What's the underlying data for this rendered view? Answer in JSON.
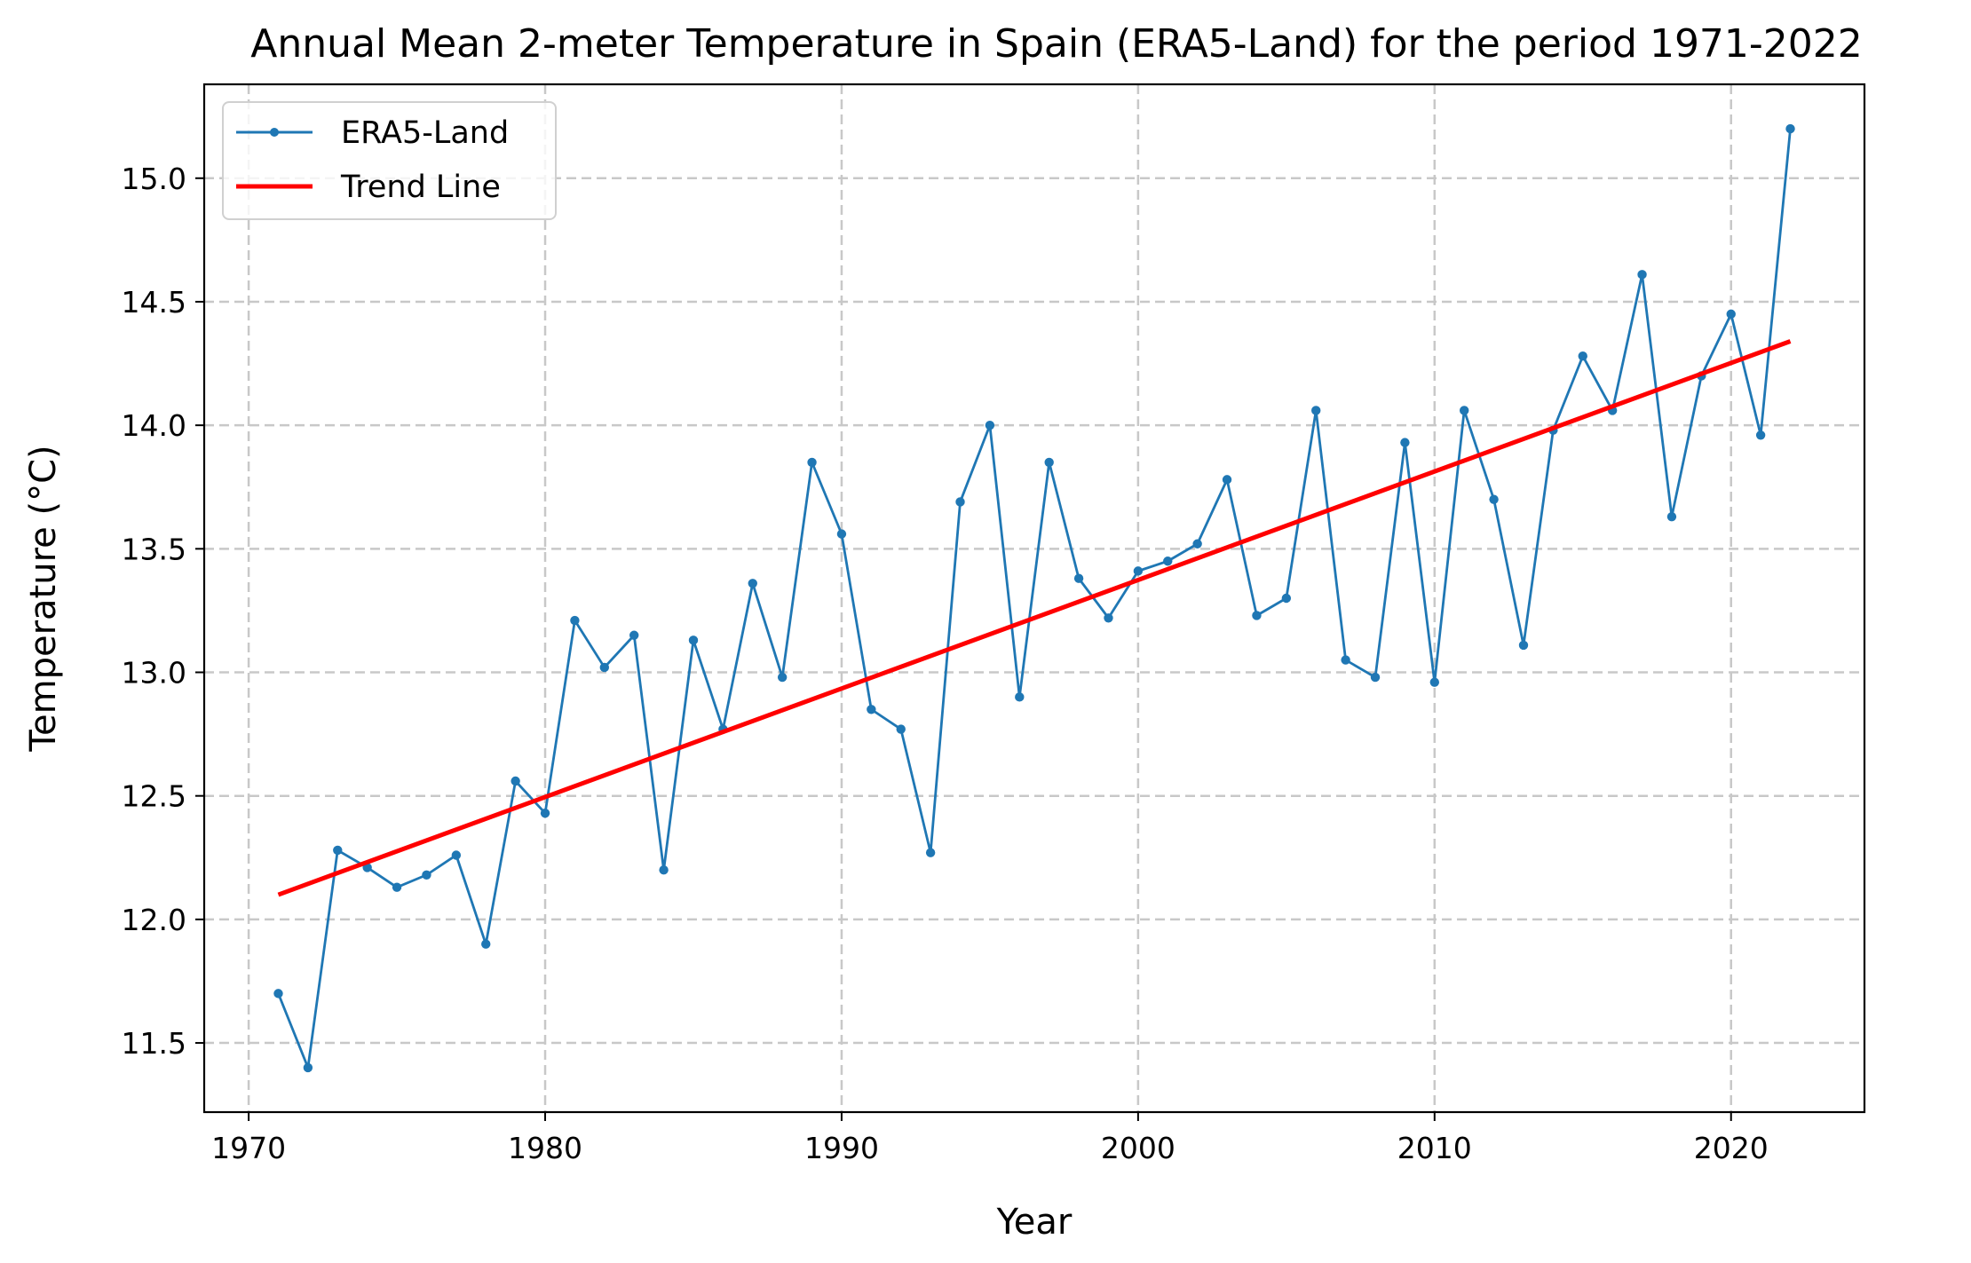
{
  "chart_data": {
    "type": "line",
    "title": "Annual Mean 2-meter Temperature in Spain (ERA5-Land) for the period 1971-2022",
    "xlabel": "Year",
    "ylabel": "Temperature (°C)",
    "xlim": [
      1968.5,
      2024.5
    ],
    "ylim": [
      11.22,
      15.38
    ],
    "xticks": [
      1970,
      1980,
      1990,
      2000,
      2010,
      2020
    ],
    "xtick_labels": [
      "1970",
      "1980",
      "1990",
      "2000",
      "2010",
      "2020"
    ],
    "yticks": [
      11.5,
      12.0,
      12.5,
      13.0,
      13.5,
      14.0,
      14.5,
      15.0
    ],
    "ytick_labels": [
      "11.5",
      "12.0",
      "12.5",
      "13.0",
      "13.5",
      "14.0",
      "14.5",
      "15.0"
    ],
    "grid": true,
    "legend_position": "top-left",
    "series": [
      {
        "name": "ERA5-Land",
        "kind": "line-with-markers",
        "color": "#1f77b4",
        "x": [
          1971,
          1972,
          1973,
          1974,
          1975,
          1976,
          1977,
          1978,
          1979,
          1980,
          1981,
          1982,
          1983,
          1984,
          1985,
          1986,
          1987,
          1988,
          1989,
          1990,
          1991,
          1992,
          1993,
          1994,
          1995,
          1996,
          1997,
          1998,
          1999,
          2000,
          2001,
          2002,
          2003,
          2004,
          2005,
          2006,
          2007,
          2008,
          2009,
          2010,
          2011,
          2012,
          2013,
          2014,
          2015,
          2016,
          2017,
          2018,
          2019,
          2020,
          2021,
          2022
        ],
        "y": [
          11.7,
          11.4,
          12.28,
          12.21,
          12.13,
          12.18,
          12.26,
          11.9,
          12.56,
          12.43,
          13.21,
          13.02,
          13.15,
          12.2,
          13.13,
          12.77,
          13.36,
          12.98,
          13.85,
          13.56,
          12.85,
          12.77,
          12.27,
          13.69,
          14.0,
          12.9,
          13.85,
          13.38,
          13.22,
          13.41,
          13.45,
          13.52,
          13.78,
          13.23,
          13.3,
          14.06,
          13.05,
          12.98,
          13.93,
          12.96,
          14.06,
          13.7,
          13.11,
          13.98,
          14.28,
          14.06,
          14.61,
          13.63,
          14.2,
          14.45,
          13.96,
          15.2
        ]
      },
      {
        "name": "Trend Line",
        "kind": "line",
        "color": "#ff0000",
        "x": [
          1971,
          2022
        ],
        "y": [
          12.1,
          14.34
        ]
      }
    ]
  }
}
